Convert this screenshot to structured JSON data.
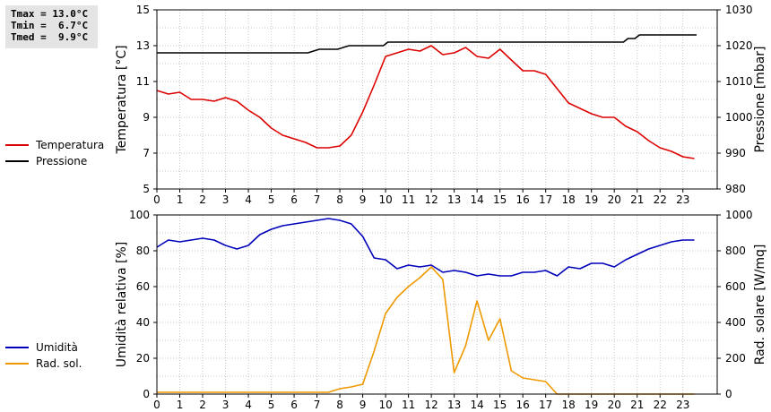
{
  "stats": {
    "tmax": "Tmax = 13.0°C",
    "tmin": "Tmin =  6.7°C",
    "tmed": "Tmed =  9.9°C"
  },
  "chart_data": [
    {
      "type": "line",
      "x_ticks": [
        0,
        1,
        2,
        3,
        4,
        5,
        6,
        7,
        8,
        9,
        10,
        11,
        12,
        13,
        14,
        15,
        16,
        17,
        18,
        19,
        20,
        21,
        22,
        23
      ],
      "xlim": [
        0,
        24.5
      ],
      "y_left": {
        "label": "Temperatura [°C]",
        "lim": [
          5,
          15
        ],
        "ticks": [
          5,
          7,
          9,
          11,
          13,
          15
        ]
      },
      "y_right": {
        "label": "Pressione [mbar]",
        "lim": [
          980,
          1030
        ],
        "ticks": [
          980,
          990,
          1000,
          1010,
          1020,
          1030
        ]
      },
      "grid": true,
      "legend": "left",
      "series": [
        {
          "name": "Temperatura",
          "color": "#dd0000",
          "axis": "left",
          "x": [
            0,
            0.5,
            1,
            1.5,
            2,
            2.5,
            3,
            3.5,
            4,
            4.5,
            5,
            5.5,
            6,
            6.5,
            7,
            7.5,
            8,
            8.5,
            9,
            9.5,
            10,
            10.5,
            11,
            11.5,
            12,
            12.5,
            13,
            13.5,
            14,
            14.5,
            15,
            15.5,
            16,
            16.5,
            17,
            17.5,
            18,
            18.5,
            19,
            19.5,
            20,
            20.5,
            21,
            21.5,
            22,
            22.5,
            23,
            23.5
          ],
          "y": [
            10.5,
            10.3,
            10.4,
            10.0,
            10.0,
            9.9,
            10.1,
            9.9,
            9.4,
            9.0,
            8.4,
            8.0,
            7.8,
            7.6,
            7.3,
            7.3,
            7.4,
            8.0,
            9.3,
            10.8,
            12.4,
            12.6,
            12.8,
            12.7,
            13.0,
            12.5,
            12.6,
            12.9,
            12.4,
            12.3,
            12.8,
            12.2,
            11.6,
            11.6,
            11.4,
            10.6,
            9.8,
            9.5,
            9.2,
            9.0,
            9.0,
            8.5,
            8.2,
            7.7,
            7.3,
            7.1,
            6.8,
            6.7
          ]
        },
        {
          "name": "Pressione",
          "color": "#000000",
          "axis": "right",
          "x": [
            0,
            6.6,
            7.1,
            7.9,
            8.4,
            9.9,
            10.1,
            20.4,
            20.6,
            20.9,
            21.1,
            23.6
          ],
          "y": [
            1018,
            1018,
            1019,
            1019,
            1020,
            1020,
            1021,
            1021,
            1022,
            1022,
            1023,
            1023
          ]
        }
      ]
    },
    {
      "type": "line",
      "x_ticks": [
        0,
        1,
        2,
        3,
        4,
        5,
        6,
        7,
        8,
        9,
        10,
        11,
        12,
        13,
        14,
        15,
        16,
        17,
        18,
        19,
        20,
        21,
        22,
        23
      ],
      "xlim": [
        0,
        24.5
      ],
      "y_left": {
        "label": "Umidità relativa [%]",
        "lim": [
          0,
          100
        ],
        "ticks": [
          0,
          20,
          40,
          60,
          80,
          100
        ]
      },
      "y_right": {
        "label": "Rad. solare [W/mq]",
        "lim": [
          0,
          1000
        ],
        "ticks": [
          0,
          200,
          400,
          600,
          800,
          1000
        ]
      },
      "grid": true,
      "legend": "left",
      "series": [
        {
          "name": "Umidità",
          "color": "#0000bb",
          "axis": "left",
          "x": [
            0,
            0.5,
            1,
            1.5,
            2,
            2.5,
            3,
            3.5,
            4,
            4.5,
            5,
            5.5,
            6,
            6.5,
            7,
            7.5,
            8,
            8.5,
            9,
            9.5,
            10,
            10.5,
            11,
            11.5,
            12,
            12.5,
            13,
            13.5,
            14,
            14.5,
            15,
            15.5,
            16,
            16.5,
            17,
            17.5,
            18,
            18.5,
            19,
            19.5,
            20,
            20.5,
            21,
            21.5,
            22,
            22.5,
            23,
            23.5
          ],
          "y": [
            82,
            86,
            85,
            86,
            87,
            86,
            83,
            81,
            83,
            89,
            92,
            94,
            95,
            96,
            97,
            98,
            97,
            95,
            88,
            76,
            75,
            70,
            72,
            71,
            72,
            68,
            69,
            68,
            66,
            67,
            66,
            66,
            68,
            68,
            69,
            66,
            71,
            70,
            73,
            73,
            71,
            75,
            78,
            81,
            83,
            85,
            86,
            86
          ]
        },
        {
          "name": "Rad. sol.",
          "color": "#ee9900",
          "axis": "right",
          "x": [
            0,
            0.5,
            1,
            1.5,
            2,
            2.5,
            3,
            3.5,
            4,
            4.5,
            5,
            5.5,
            6,
            6.5,
            7,
            7.5,
            8,
            8.5,
            9,
            9.5,
            10,
            10.5,
            11,
            11.5,
            12,
            12.5,
            13,
            13.5,
            14,
            14.5,
            15,
            15.5,
            16,
            16.5,
            17,
            17.5,
            18,
            18.5,
            19,
            19.5,
            20,
            20.5,
            21,
            21.5,
            22,
            22.5,
            23,
            23.5
          ],
          "y": [
            10,
            10,
            10,
            10,
            10,
            10,
            10,
            10,
            10,
            10,
            10,
            10,
            10,
            10,
            10,
            10,
            30,
            40,
            55,
            240,
            450,
            540,
            600,
            650,
            710,
            640,
            120,
            270,
            520,
            300,
            420,
            130,
            90,
            80,
            70,
            0,
            0,
            0,
            0,
            0,
            0,
            0,
            0,
            0,
            0,
            0,
            0,
            0
          ]
        }
      ]
    }
  ]
}
